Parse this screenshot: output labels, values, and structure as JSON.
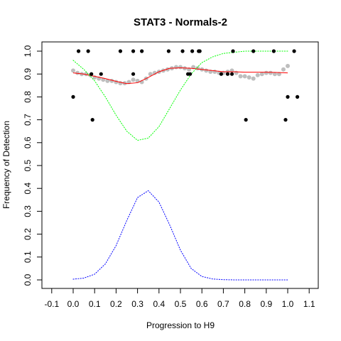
{
  "chart_data": {
    "type": "scatter",
    "title": "STAT3 - Normals-2",
    "xlabel": "Progression to H9",
    "ylabel": "Frequency of Detection",
    "xlim": [
      -0.1,
      1.1
    ],
    "ylim": [
      0.0,
      1.0
    ],
    "x_ticks": [
      "-0.1",
      "0.0",
      "0.1",
      "0.2",
      "0.3",
      "0.4",
      "0.5",
      "0.6",
      "0.7",
      "0.8",
      "0.9",
      "1.0",
      "1.1"
    ],
    "y_ticks": [
      "0.0",
      "0.1",
      "0.2",
      "0.3",
      "0.4",
      "0.5",
      "0.6",
      "0.7",
      "0.8",
      "0.9",
      "1.0"
    ],
    "grid": false,
    "legend": "none",
    "colors": {
      "observed": "#000000",
      "smoothed_points": "#bebebe",
      "fit": "#ff0000",
      "upper_band": "#00ff00",
      "density": "#0000ff"
    },
    "series": [
      {
        "style": "black-points",
        "points": [
          [
            0.0,
            0.8
          ],
          [
            0.025,
            1.0
          ],
          [
            0.07,
            1.0
          ],
          [
            0.09,
            0.7
          ],
          [
            0.085,
            0.9
          ],
          [
            0.13,
            0.9
          ],
          [
            0.22,
            1.0
          ],
          [
            0.28,
            1.0
          ],
          [
            0.28,
            0.9
          ],
          [
            0.32,
            1.0
          ],
          [
            0.445,
            1.0
          ],
          [
            0.51,
            1.0
          ],
          [
            0.535,
            0.9
          ],
          [
            0.545,
            0.9
          ],
          [
            0.555,
            1.0
          ],
          [
            0.585,
            1.0
          ],
          [
            0.59,
            1.0
          ],
          [
            0.69,
            0.9
          ],
          [
            0.72,
            0.9
          ],
          [
            0.74,
            0.9
          ],
          [
            0.745,
            1.0
          ],
          [
            0.805,
            0.7
          ],
          [
            0.84,
            1.0
          ],
          [
            0.935,
            1.0
          ],
          [
            0.99,
            0.7
          ],
          [
            1.0,
            0.8
          ],
          [
            1.03,
            1.0
          ],
          [
            1.045,
            0.8
          ]
        ]
      },
      {
        "style": "grey-points",
        "x": [
          0.0,
          0.02,
          0.04,
          0.06,
          0.08,
          0.1,
          0.12,
          0.14,
          0.16,
          0.18,
          0.2,
          0.22,
          0.24,
          0.26,
          0.28,
          0.3,
          0.32,
          0.34,
          0.36,
          0.38,
          0.4,
          0.42,
          0.44,
          0.46,
          0.48,
          0.5,
          0.52,
          0.54,
          0.56,
          0.58,
          0.6,
          0.62,
          0.64,
          0.66,
          0.68,
          0.7,
          0.72,
          0.74,
          0.76,
          0.78,
          0.8,
          0.82,
          0.84,
          0.86,
          0.88,
          0.9,
          0.92,
          0.94,
          0.96,
          0.98,
          1.0
        ],
        "y": [
          0.915,
          0.905,
          0.9,
          0.9,
          0.895,
          0.885,
          0.88,
          0.875,
          0.87,
          0.87,
          0.865,
          0.86,
          0.86,
          0.865,
          0.875,
          0.87,
          0.865,
          0.88,
          0.9,
          0.905,
          0.91,
          0.915,
          0.92,
          0.925,
          0.93,
          0.93,
          0.925,
          0.92,
          0.93,
          0.925,
          0.92,
          0.915,
          0.91,
          0.91,
          0.905,
          0.905,
          0.91,
          0.915,
          0.905,
          0.89,
          0.89,
          0.885,
          0.88,
          0.895,
          0.9,
          0.905,
          0.905,
          0.9,
          0.9,
          0.92,
          0.935
        ]
      },
      {
        "style": "red-line",
        "x": [
          0.0,
          0.05,
          0.1,
          0.15,
          0.2,
          0.25,
          0.3,
          0.35,
          0.4,
          0.45,
          0.5,
          0.55,
          0.6,
          0.65,
          0.7,
          0.75,
          0.8,
          0.85,
          0.9,
          0.95,
          1.0
        ],
        "y": [
          0.905,
          0.9,
          0.89,
          0.88,
          0.868,
          0.858,
          0.862,
          0.885,
          0.91,
          0.925,
          0.927,
          0.925,
          0.92,
          0.915,
          0.91,
          0.91,
          0.908,
          0.908,
          0.908,
          0.907,
          0.905
        ]
      },
      {
        "style": "green-dotted",
        "x": [
          0.0,
          0.05,
          0.1,
          0.15,
          0.2,
          0.25,
          0.3,
          0.35,
          0.4,
          0.45,
          0.5,
          0.55,
          0.6,
          0.65,
          0.7,
          0.75,
          0.8,
          0.85,
          0.9,
          0.95,
          1.0
        ],
        "y": [
          0.96,
          0.92,
          0.87,
          0.8,
          0.72,
          0.65,
          0.61,
          0.62,
          0.67,
          0.75,
          0.83,
          0.9,
          0.95,
          0.975,
          0.99,
          0.995,
          1.0,
          1.0,
          1.0,
          1.0,
          1.0
        ]
      },
      {
        "style": "blue-dotted",
        "x": [
          0.0,
          0.05,
          0.1,
          0.15,
          0.2,
          0.25,
          0.3,
          0.35,
          0.4,
          0.45,
          0.5,
          0.55,
          0.6,
          0.65,
          0.7,
          0.75,
          0.8,
          0.85,
          0.9,
          0.95,
          1.0
        ],
        "y": [
          0.003,
          0.008,
          0.025,
          0.07,
          0.15,
          0.26,
          0.36,
          0.39,
          0.34,
          0.24,
          0.13,
          0.05,
          0.015,
          0.004,
          0.001,
          0.0,
          0.0,
          0.0,
          0.0,
          0.0,
          0.0
        ]
      }
    ]
  }
}
